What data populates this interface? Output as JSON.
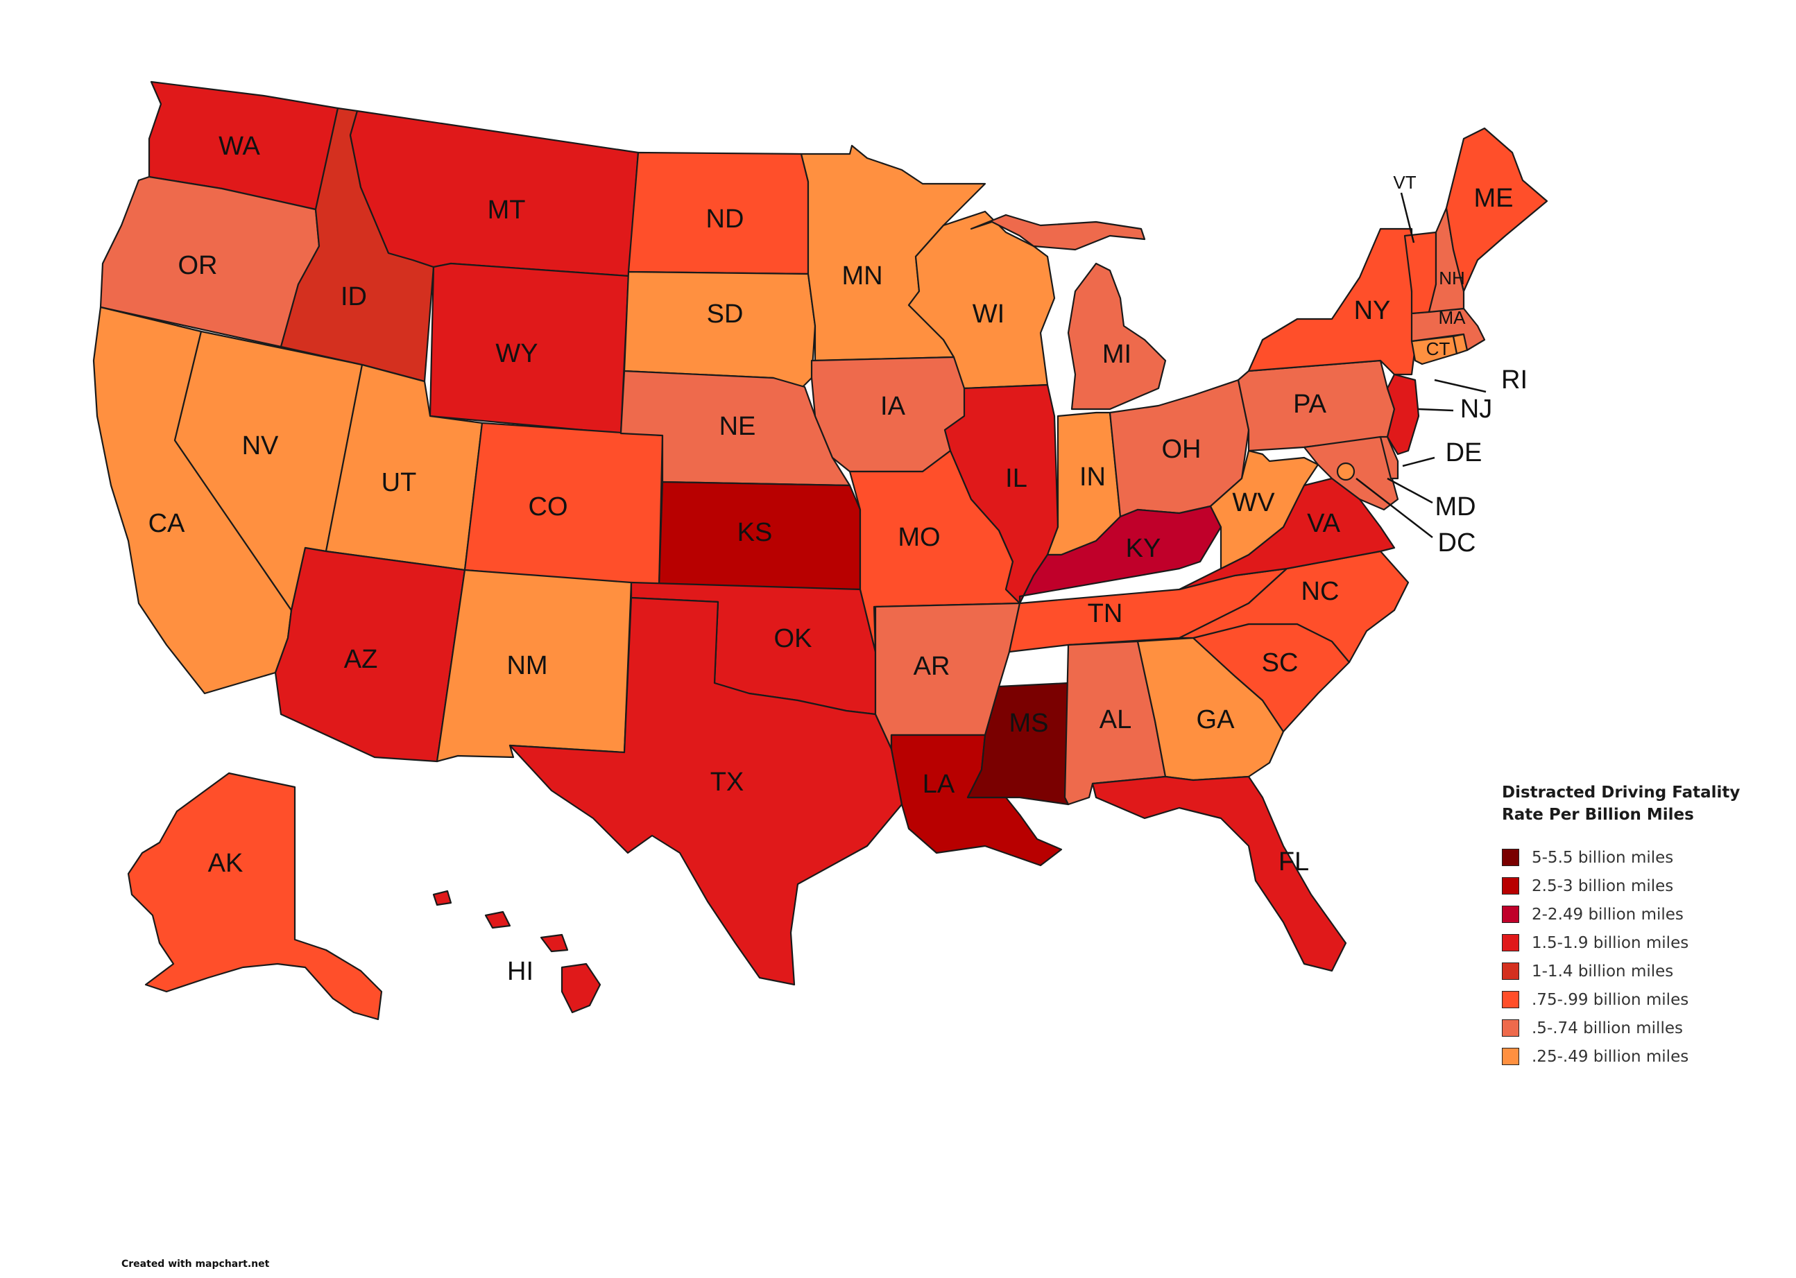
{
  "legend": {
    "title_line1": "Distracted Driving Fatality",
    "title_line2": "Rate Per Billion Miles",
    "items": [
      {
        "label": "5-5.5 billion miles",
        "color": "#7a0000"
      },
      {
        "label": "2.5-3 billion miles",
        "color": "#b80000"
      },
      {
        "label": "2-2.49 billion miles",
        "color": "#c0002a"
      },
      {
        "label": "1.5-1.9 billion miles",
        "color": "#e0191a"
      },
      {
        "label": "1-1.4 billion miles",
        "color": "#d4301f"
      },
      {
        "label": ".75-.99 billion miles",
        "color": "#ff4f2a"
      },
      {
        "label": ".5-.74 billion milles",
        "color": "#ee6a4c"
      },
      {
        "label": ".25-.49 billion miles",
        "color": "#ff9040"
      }
    ]
  },
  "credit": "Created with mapchart.net",
  "states": {
    "WA": {
      "label": "WA",
      "bin": 3
    },
    "OR": {
      "label": "OR",
      "bin": 6
    },
    "CA": {
      "label": "CA",
      "bin": 7
    },
    "NV": {
      "label": "NV",
      "bin": 7
    },
    "ID": {
      "label": "ID",
      "bin": 4
    },
    "MT": {
      "label": "MT",
      "bin": 3
    },
    "WY": {
      "label": "WY",
      "bin": 3
    },
    "UT": {
      "label": "UT",
      "bin": 7
    },
    "AZ": {
      "label": "AZ",
      "bin": 3
    },
    "CO": {
      "label": "CO",
      "bin": 5
    },
    "NM": {
      "label": "NM",
      "bin": 7
    },
    "ND": {
      "label": "ND",
      "bin": 5
    },
    "SD": {
      "label": "SD",
      "bin": 7
    },
    "NE": {
      "label": "NE",
      "bin": 6
    },
    "KS": {
      "label": "KS",
      "bin": 1
    },
    "OK": {
      "label": "OK",
      "bin": 3
    },
    "TX": {
      "label": "TX",
      "bin": 3
    },
    "MN": {
      "label": "MN",
      "bin": 7
    },
    "IA": {
      "label": "IA",
      "bin": 6
    },
    "MO": {
      "label": "MO",
      "bin": 5
    },
    "AR": {
      "label": "AR",
      "bin": 6
    },
    "LA": {
      "label": "LA",
      "bin": 1
    },
    "WI": {
      "label": "WI",
      "bin": 7
    },
    "IL": {
      "label": "IL",
      "bin": 3
    },
    "MS": {
      "label": "MS",
      "bin": 0
    },
    "MI": {
      "label": "MI",
      "bin": 6
    },
    "IN": {
      "label": "IN",
      "bin": 7
    },
    "OH": {
      "label": "OH",
      "bin": 6
    },
    "KY": {
      "label": "KY",
      "bin": 2
    },
    "TN": {
      "label": "TN",
      "bin": 5
    },
    "AL": {
      "label": "AL",
      "bin": 6
    },
    "GA": {
      "label": "GA",
      "bin": 7
    },
    "FL": {
      "label": "FL",
      "bin": 3
    },
    "SC": {
      "label": "SC",
      "bin": 5
    },
    "NC": {
      "label": "NC",
      "bin": 5
    },
    "VA": {
      "label": "VA",
      "bin": 3
    },
    "WV": {
      "label": "WV",
      "bin": 7
    },
    "PA": {
      "label": "PA",
      "bin": 6
    },
    "NY": {
      "label": "NY",
      "bin": 5
    },
    "NJ": {
      "label": "NJ",
      "bin": 3
    },
    "DE": {
      "label": "DE",
      "bin": 6
    },
    "MD": {
      "label": "MD",
      "bin": 6
    },
    "DC": {
      "label": "DC",
      "bin": 7
    },
    "CT": {
      "label": "CT",
      "bin": 7
    },
    "RI": {
      "label": "RI",
      "bin": 7
    },
    "MA": {
      "label": "MA",
      "bin": 6
    },
    "VT": {
      "label": "VT",
      "bin": 5
    },
    "NH": {
      "label": "NH",
      "bin": 6
    },
    "ME": {
      "label": "ME",
      "bin": 5
    },
    "AK": {
      "label": "AK",
      "bin": 5
    },
    "HI": {
      "label": "HI",
      "bin": 3
    }
  }
}
